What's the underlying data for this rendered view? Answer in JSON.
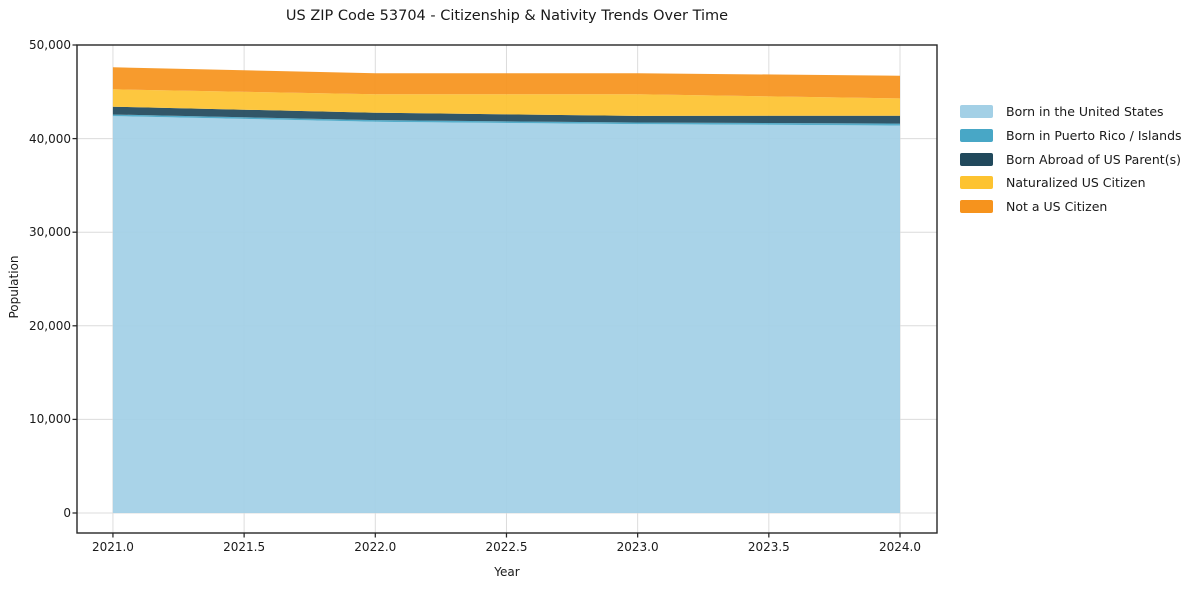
{
  "figure": {
    "title": "US ZIP Code 53704 - Citizenship & Nativity Trends Over Time",
    "background": "#ffffff",
    "text_color": "#1a1a1a",
    "grid_color": "#dcdcdc",
    "spine_color": "#262626"
  },
  "chart_data": {
    "type": "area",
    "stacked": true,
    "title": "US ZIP Code 53704 - Citizenship & Nativity Trends Over Time",
    "xlabel": "Year",
    "ylabel": "Population",
    "x": [
      2021,
      2022,
      2023,
      2024
    ],
    "series": [
      {
        "name": "Born in the United States",
        "color": "#a3d0e6",
        "values": [
          42400,
          41800,
          41550,
          41400
        ]
      },
      {
        "name": "Born in Puerto Rico / Islands",
        "color": "#48a7c6",
        "values": [
          180,
          180,
          170,
          200
        ]
      },
      {
        "name": "Born Abroad of US Parent(s)",
        "color": "#21495c",
        "values": [
          830,
          790,
          700,
          850
        ]
      },
      {
        "name": "Naturalized US Citizen",
        "color": "#fdc330",
        "values": [
          1860,
          1960,
          2310,
          1850
        ]
      },
      {
        "name": "Not a US Citizen",
        "color": "#f6931d",
        "values": [
          2350,
          2250,
          2250,
          2420
        ]
      }
    ],
    "stack_totals": [
      47620,
      46980,
      46980,
      46720
    ],
    "xticks": [
      2021.0,
      2021.5,
      2022.0,
      2022.5,
      2023.0,
      2023.5,
      2024.0
    ],
    "xtick_labels": [
      "2021.0",
      "2021.5",
      "2022.0",
      "2022.5",
      "2023.0",
      "2023.5",
      "2024.0"
    ],
    "yticks": [
      0,
      10000,
      20000,
      30000,
      40000,
      50000
    ],
    "ytick_labels": [
      "0",
      "10,000",
      "20,000",
      "30,000",
      "40,000",
      "50,000"
    ],
    "xlim": [
      2020.863,
      2024.141
    ],
    "ylim": [
      -2137,
      50000
    ],
    "grid": true,
    "legend_position": "outside-right",
    "area_opacity": 0.93
  }
}
